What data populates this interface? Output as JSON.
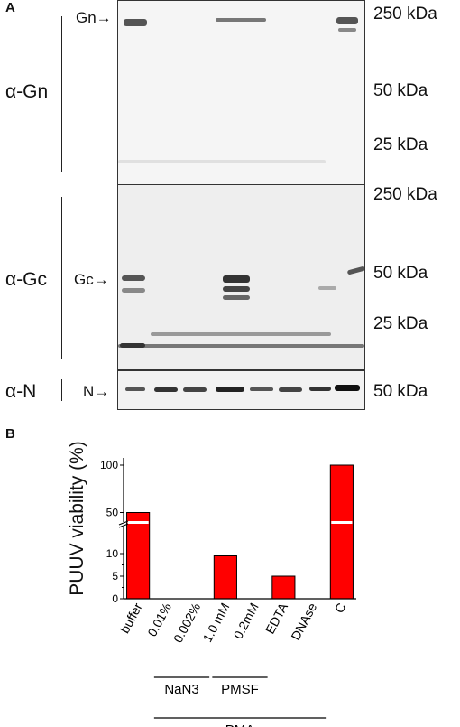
{
  "panel_a": {
    "letter": "A",
    "antibodies": {
      "gn": "α-Gn",
      "gc": "α-Gc",
      "n": "α-N"
    },
    "band_labels": {
      "gn": "Gn→",
      "gc": "Gc→",
      "n": "N→"
    },
    "markers": {
      "gn_250": "250 kDa",
      "gn_50": "50 kDa",
      "gn_25": "25 kDa",
      "gc_250": "250 kDa",
      "gc_50": "50 kDa",
      "gc_25": "25 kDa",
      "n_50": "50 kDa"
    }
  },
  "panel_b": {
    "letter": "B",
    "chart_data": {
      "type": "bar",
      "ylabel": "PUUV viability (%)",
      "categories": [
        "buffer",
        "0.01%",
        "0.002%",
        "1.0 mM",
        "0.2mM",
        "EDTA",
        "DNAse",
        "C"
      ],
      "values": [
        50,
        0,
        0,
        9.5,
        0,
        5,
        0,
        100
      ],
      "y_axis_break": true,
      "lower_ticks": [
        "0",
        "5",
        "10"
      ],
      "upper_ticks": [
        "50",
        "100"
      ],
      "bar_color": "#ff0000",
      "groups": [
        {
          "label": "NaN3",
          "from": 1,
          "to": 2
        },
        {
          "label": "PMSF",
          "from": 3,
          "to": 4
        },
        {
          "label": "PMA",
          "from": 1,
          "to": 6
        }
      ]
    }
  }
}
